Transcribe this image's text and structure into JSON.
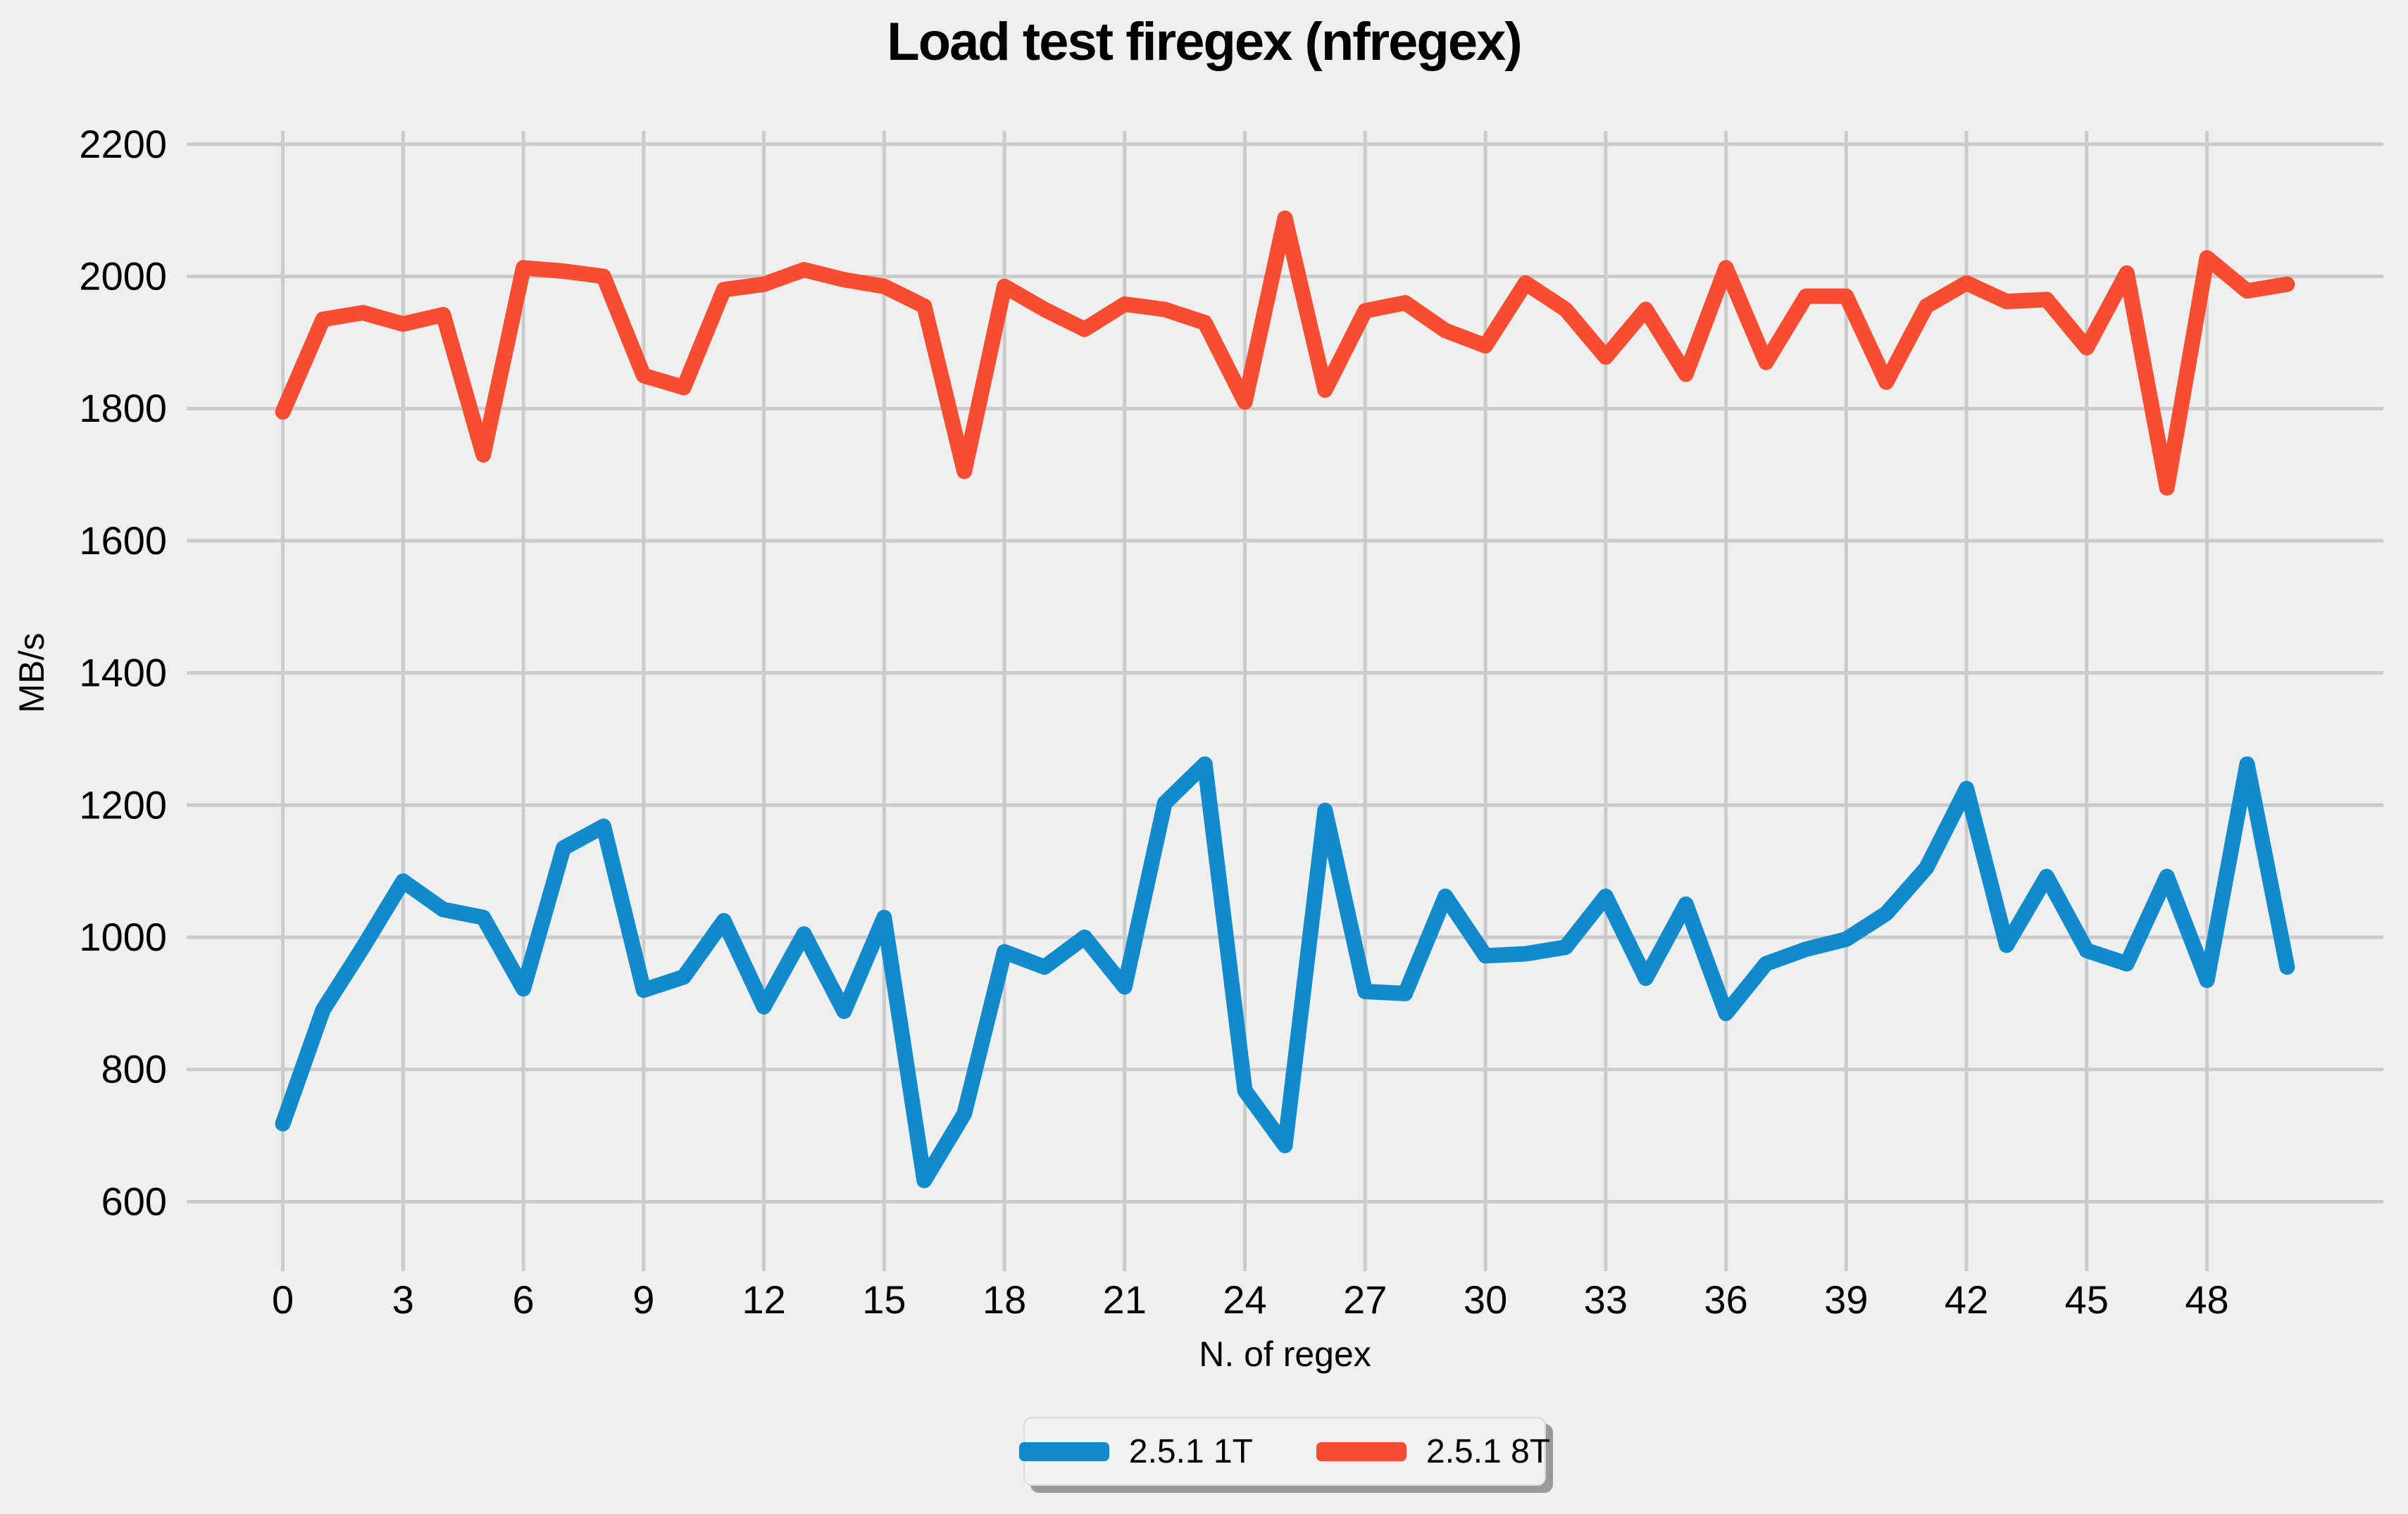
{
  "title": "Load test firegex (nfregex)",
  "colors": {
    "background": "#efefef",
    "grid": "#cbcbcb",
    "text": "#000000",
    "series_1t": "#118bcd",
    "series_8t": "#f94d32",
    "legend_background": "#f1f1f1",
    "legend_border": "#d9d9d9",
    "legend_shadow": "#9a9a9a"
  },
  "chart_data": {
    "type": "line",
    "title": "Load test firegex (nfregex)",
    "xlabel": "N. of regex",
    "ylabel": "MB/s",
    "grid": true,
    "legend_position": "bottom-center",
    "xlim": [
      -2.4,
      52.4
    ],
    "ylim": [
      495,
      2220
    ],
    "xticks": [
      0,
      3,
      6,
      9,
      12,
      15,
      18,
      21,
      24,
      27,
      30,
      33,
      36,
      39,
      42,
      45,
      48
    ],
    "yticks": [
      600,
      800,
      1000,
      1200,
      1400,
      1600,
      1800,
      2000,
      2200
    ],
    "x": [
      0,
      1,
      2,
      3,
      4,
      5,
      6,
      7,
      8,
      9,
      10,
      11,
      12,
      13,
      14,
      15,
      16,
      17,
      18,
      19,
      20,
      21,
      22,
      23,
      24,
      25,
      26,
      27,
      28,
      29,
      30,
      31,
      32,
      33,
      34,
      35,
      36,
      37,
      38,
      39,
      40,
      41,
      42,
      43,
      44,
      45,
      46,
      47,
      48,
      49,
      50
    ],
    "series": [
      {
        "name": "2.5.1 1T",
        "color": "#118bcd",
        "values": [
          718,
          890,
          985,
          1085,
          1042,
          1030,
          922,
          1135,
          1168,
          920,
          940,
          1025,
          895,
          1005,
          888,
          1030,
          632,
          733,
          978,
          955,
          1000,
          925,
          1203,
          1262,
          768,
          685,
          1192,
          918,
          915,
          1062,
          972,
          975,
          985,
          1062,
          938,
          1050,
          885,
          960,
          982,
          997,
          1036,
          1105,
          1225,
          988,
          1092,
          980,
          960,
          1092,
          935,
          1262,
          955
        ]
      },
      {
        "name": "2.5.1 8T",
        "color": "#f94d32",
        "values": [
          1795,
          1935,
          1945,
          1928,
          1942,
          1730,
          2013,
          2008,
          2000,
          1850,
          1832,
          1980,
          1988,
          2010,
          1995,
          1985,
          1955,
          1705,
          1985,
          1950,
          1920,
          1958,
          1950,
          1930,
          1810,
          2088,
          1828,
          1948,
          1960,
          1918,
          1895,
          1990,
          1950,
          1878,
          1950,
          1852,
          2013,
          1870,
          1970,
          1970,
          1840,
          1955,
          1990,
          1962,
          1965,
          1892,
          2005,
          1680,
          2028,
          1978,
          1988
        ]
      }
    ]
  }
}
